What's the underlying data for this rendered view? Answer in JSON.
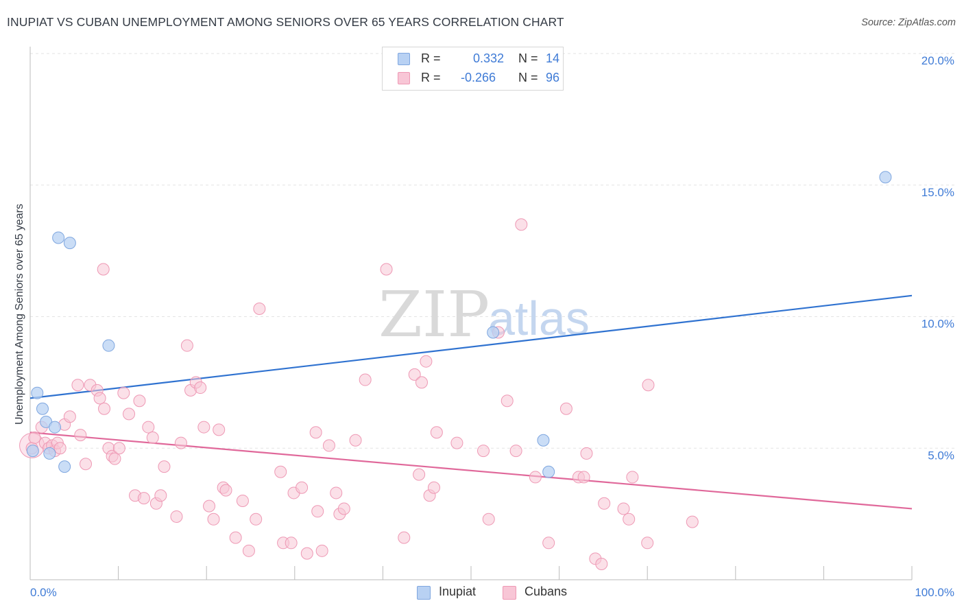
{
  "title": "INUPIAT VS CUBAN UNEMPLOYMENT AMONG SENIORS OVER 65 YEARS CORRELATION CHART",
  "source": "Source: ZipAtlas.com",
  "watermark": {
    "zip": "ZIP",
    "atlas": "atlas"
  },
  "colors": {
    "inupiat_fill": "#b8d1f3",
    "inupiat_stroke": "#7ea6df",
    "inupiat_line": "#2f72d0",
    "cubans_fill": "#f8c6d6",
    "cubans_stroke": "#ee98b4",
    "cubans_line": "#e0689a",
    "accent_text": "#3f7bd6",
    "grid": "#e3e3e3"
  },
  "legend": {
    "rows": [
      {
        "r_label": "R =",
        "r_value": "0.332",
        "n_label": "N =",
        "n_value": "14"
      },
      {
        "r_label": "R =",
        "r_value": "-0.266",
        "n_label": "N =",
        "n_value": "96"
      }
    ]
  },
  "bottom_legend": {
    "inupiat": "Inupiat",
    "cubans": "Cubans"
  },
  "chart_data": {
    "type": "scatter",
    "title": "INUPIAT VS CUBAN UNEMPLOYMENT AMONG SENIORS OVER 65 YEARS CORRELATION CHART",
    "xlabel": "",
    "ylabel": "Unemployment Among Seniors over 65 years",
    "xlim": [
      0,
      100
    ],
    "ylim": [
      0,
      20
    ],
    "x_ticks": [
      0,
      10,
      20,
      30,
      40,
      50,
      60,
      70,
      80,
      90,
      100
    ],
    "x_tick_labels_shown": {
      "0": "0.0%",
      "100": "100.0%"
    },
    "y_ticks": [
      5,
      10,
      15,
      20
    ],
    "y_tick_labels": [
      "5.0%",
      "10.0%",
      "15.0%",
      "20.0%"
    ],
    "grid": true,
    "legend_position": "top-center",
    "series": [
      {
        "name": "Inupiat",
        "r": 0.332,
        "n": 14,
        "trend": {
          "x": [
            0,
            100
          ],
          "y": [
            6.9,
            10.8
          ]
        },
        "points": [
          {
            "x": 0.3,
            "y": 4.9
          },
          {
            "x": 0.8,
            "y": 7.1
          },
          {
            "x": 1.4,
            "y": 6.5
          },
          {
            "x": 1.8,
            "y": 6.0
          },
          {
            "x": 2.2,
            "y": 4.8
          },
          {
            "x": 2.8,
            "y": 5.8
          },
          {
            "x": 3.2,
            "y": 13.0
          },
          {
            "x": 3.9,
            "y": 4.3
          },
          {
            "x": 4.5,
            "y": 12.8
          },
          {
            "x": 8.9,
            "y": 8.9
          },
          {
            "x": 52.5,
            "y": 9.4
          },
          {
            "x": 58.2,
            "y": 5.3
          },
          {
            "x": 58.8,
            "y": 4.1
          },
          {
            "x": 97.0,
            "y": 15.3
          }
        ]
      },
      {
        "name": "Cubans",
        "r": -0.266,
        "n": 96,
        "trend": {
          "x": [
            0,
            100
          ],
          "y": [
            5.6,
            2.7
          ]
        },
        "points": [
          {
            "x": 0.2,
            "y": 5.0
          },
          {
            "x": 0.5,
            "y": 5.4
          },
          {
            "x": 1.3,
            "y": 5.8
          },
          {
            "x": 1.7,
            "y": 5.2
          },
          {
            "x": 2.1,
            "y": 5.0
          },
          {
            "x": 2.5,
            "y": 5.1
          },
          {
            "x": 2.8,
            "y": 4.9
          },
          {
            "x": 3.1,
            "y": 5.2
          },
          {
            "x": 3.4,
            "y": 5.0
          },
          {
            "x": 3.9,
            "y": 5.9
          },
          {
            "x": 4.5,
            "y": 6.2
          },
          {
            "x": 5.4,
            "y": 7.4
          },
          {
            "x": 5.7,
            "y": 5.5
          },
          {
            "x": 6.3,
            "y": 4.4
          },
          {
            "x": 6.8,
            "y": 7.4
          },
          {
            "x": 7.6,
            "y": 7.2
          },
          {
            "x": 7.9,
            "y": 6.9
          },
          {
            "x": 8.4,
            "y": 6.5
          },
          {
            "x": 8.3,
            "y": 11.8
          },
          {
            "x": 8.9,
            "y": 5.0
          },
          {
            "x": 9.3,
            "y": 4.7
          },
          {
            "x": 9.6,
            "y": 4.6
          },
          {
            "x": 10.1,
            "y": 5.0
          },
          {
            "x": 10.6,
            "y": 7.1
          },
          {
            "x": 11.2,
            "y": 6.3
          },
          {
            "x": 11.9,
            "y": 3.2
          },
          {
            "x": 12.4,
            "y": 6.8
          },
          {
            "x": 12.9,
            "y": 3.1
          },
          {
            "x": 13.4,
            "y": 5.8
          },
          {
            "x": 13.9,
            "y": 5.4
          },
          {
            "x": 14.3,
            "y": 2.9
          },
          {
            "x": 14.8,
            "y": 3.2
          },
          {
            "x": 15.2,
            "y": 4.3
          },
          {
            "x": 16.6,
            "y": 2.4
          },
          {
            "x": 17.1,
            "y": 5.2
          },
          {
            "x": 17.8,
            "y": 8.9
          },
          {
            "x": 18.2,
            "y": 7.2
          },
          {
            "x": 18.8,
            "y": 7.5
          },
          {
            "x": 19.3,
            "y": 7.3
          },
          {
            "x": 19.7,
            "y": 5.8
          },
          {
            "x": 20.3,
            "y": 2.8
          },
          {
            "x": 20.8,
            "y": 2.3
          },
          {
            "x": 21.4,
            "y": 5.7
          },
          {
            "x": 21.9,
            "y": 3.5
          },
          {
            "x": 22.2,
            "y": 3.4
          },
          {
            "x": 23.3,
            "y": 1.6
          },
          {
            "x": 24.1,
            "y": 3.0
          },
          {
            "x": 25.6,
            "y": 2.3
          },
          {
            "x": 24.8,
            "y": 1.1
          },
          {
            "x": 26.0,
            "y": 10.3
          },
          {
            "x": 28.4,
            "y": 4.1
          },
          {
            "x": 28.7,
            "y": 1.4
          },
          {
            "x": 29.6,
            "y": 1.4
          },
          {
            "x": 29.9,
            "y": 3.3
          },
          {
            "x": 30.8,
            "y": 3.5
          },
          {
            "x": 31.4,
            "y": 1.0
          },
          {
            "x": 32.4,
            "y": 5.6
          },
          {
            "x": 32.6,
            "y": 2.6
          },
          {
            "x": 33.1,
            "y": 1.1
          },
          {
            "x": 33.9,
            "y": 5.1
          },
          {
            "x": 34.7,
            "y": 3.3
          },
          {
            "x": 35.1,
            "y": 2.5
          },
          {
            "x": 35.6,
            "y": 2.7
          },
          {
            "x": 36.9,
            "y": 5.3
          },
          {
            "x": 38.0,
            "y": 7.6
          },
          {
            "x": 40.4,
            "y": 11.8
          },
          {
            "x": 42.4,
            "y": 1.6
          },
          {
            "x": 43.6,
            "y": 7.8
          },
          {
            "x": 44.1,
            "y": 4.0
          },
          {
            "x": 44.4,
            "y": 7.5
          },
          {
            "x": 44.9,
            "y": 8.3
          },
          {
            "x": 45.3,
            "y": 3.2
          },
          {
            "x": 45.8,
            "y": 3.5
          },
          {
            "x": 46.1,
            "y": 5.6
          },
          {
            "x": 48.4,
            "y": 5.2
          },
          {
            "x": 51.4,
            "y": 4.9
          },
          {
            "x": 52.0,
            "y": 2.3
          },
          {
            "x": 53.1,
            "y": 9.4
          },
          {
            "x": 54.1,
            "y": 6.8
          },
          {
            "x": 55.1,
            "y": 4.9
          },
          {
            "x": 55.7,
            "y": 13.5
          },
          {
            "x": 57.3,
            "y": 3.9
          },
          {
            "x": 58.8,
            "y": 1.4
          },
          {
            "x": 60.8,
            "y": 6.5
          },
          {
            "x": 62.2,
            "y": 3.9
          },
          {
            "x": 62.8,
            "y": 3.9
          },
          {
            "x": 63.1,
            "y": 4.8
          },
          {
            "x": 64.1,
            "y": 0.8
          },
          {
            "x": 64.8,
            "y": 0.6
          },
          {
            "x": 65.1,
            "y": 2.9
          },
          {
            "x": 67.3,
            "y": 2.7
          },
          {
            "x": 67.9,
            "y": 2.3
          },
          {
            "x": 68.3,
            "y": 3.9
          },
          {
            "x": 70.1,
            "y": 7.4
          },
          {
            "x": 70.0,
            "y": 1.4
          },
          {
            "x": 75.1,
            "y": 2.2
          }
        ]
      }
    ]
  }
}
